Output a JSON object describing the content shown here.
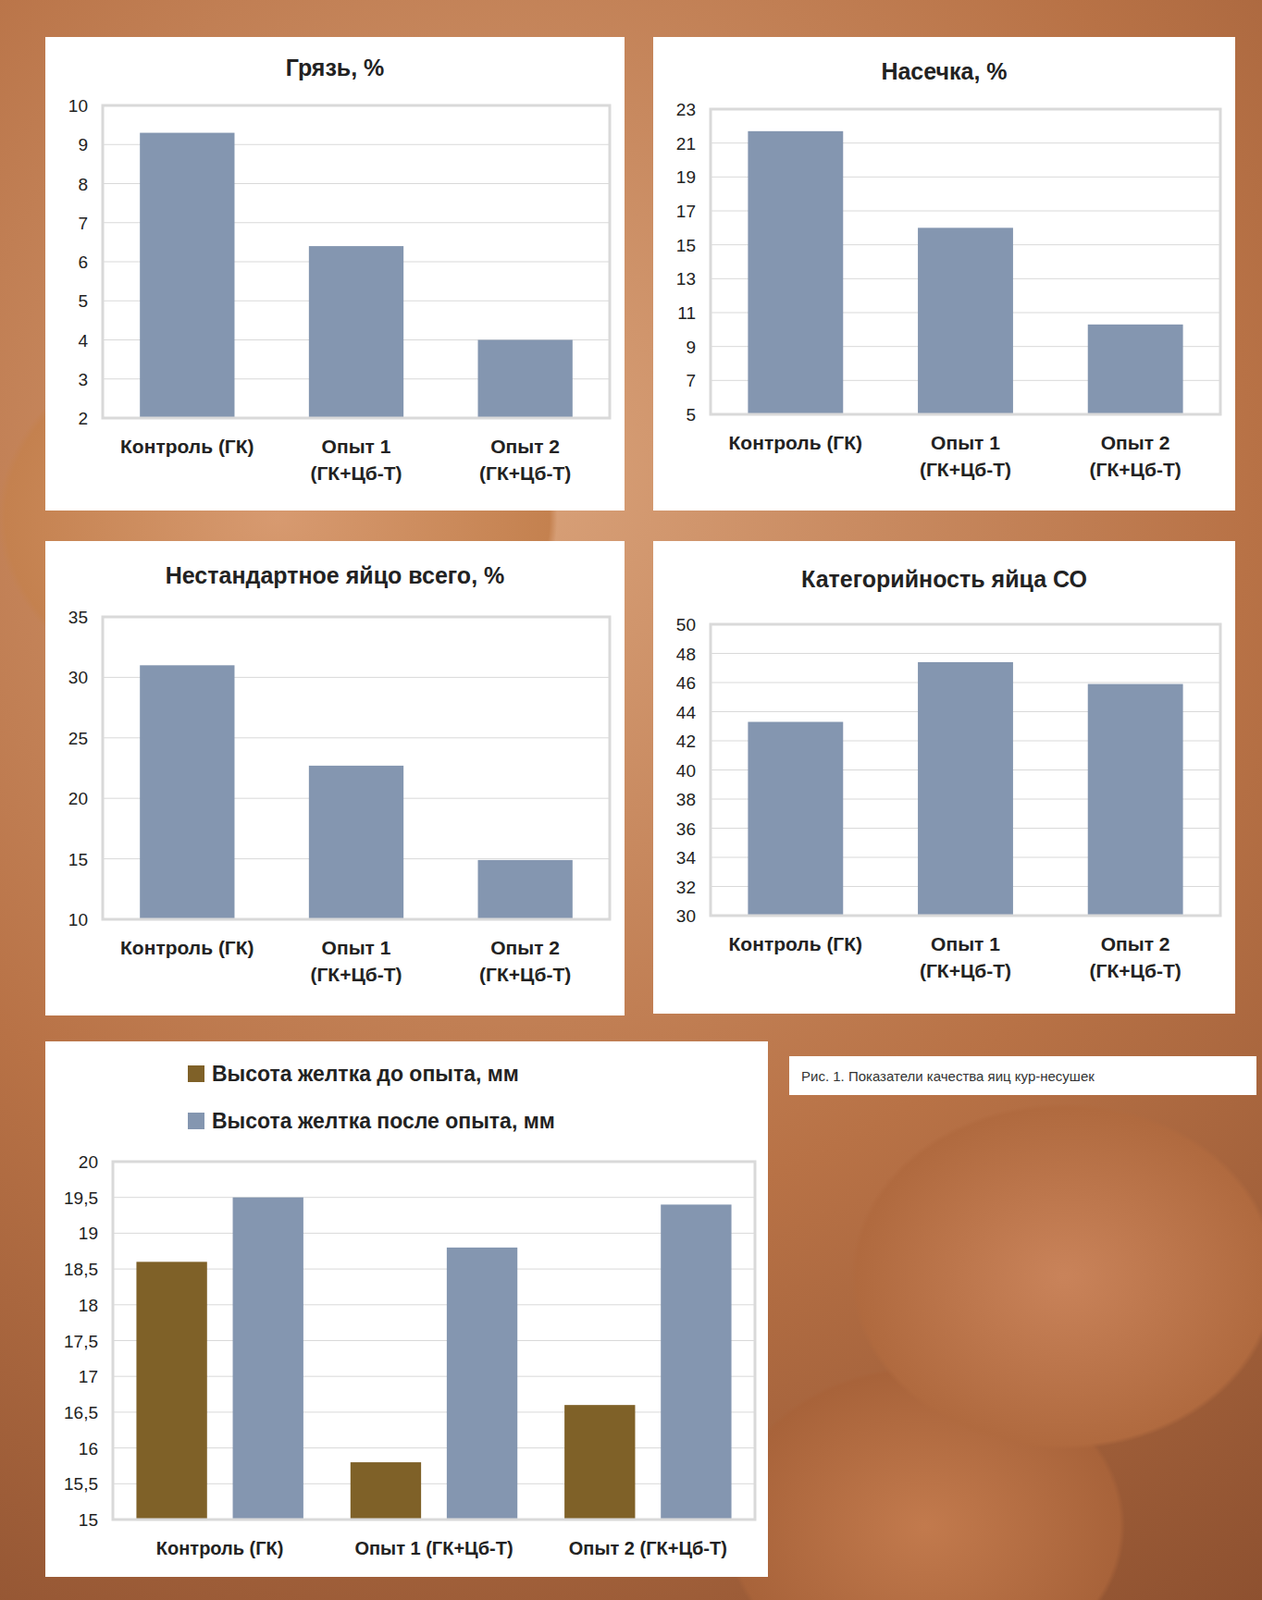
{
  "chart_data": [
    {
      "type": "bar",
      "title": "Грязь, %",
      "categories": [
        "Контроль (ГК)",
        "Опыт 1 (ГК+Цб-Т)",
        "Опыт 2 (ГК+Цб-Т)"
      ],
      "values": [
        9.3,
        6.4,
        4.0
      ],
      "color": "#8496b0",
      "ylim": [
        2,
        10
      ],
      "yticks": [
        2,
        3,
        4,
        5,
        6,
        7,
        8,
        9,
        10
      ],
      "grid": true
    },
    {
      "type": "bar",
      "title": "Насечка, %",
      "categories": [
        "Контроль (ГК)",
        "Опыт 1 (ГК+Цб-Т)",
        "Опыт 2 (ГК+Цб-Т)"
      ],
      "values": [
        21.7,
        16.0,
        10.3
      ],
      "color": "#8496b0",
      "ylim": [
        5,
        23
      ],
      "yticks": [
        5,
        7,
        9,
        11,
        13,
        15,
        17,
        19,
        21,
        23
      ],
      "grid": true
    },
    {
      "type": "bar",
      "title": "Нестандартное яйцо всего, %",
      "categories": [
        "Контроль (ГК)",
        "Опыт 1 (ГК+Цб-Т)",
        "Опыт 2 (ГК+Цб-Т)"
      ],
      "values": [
        31.0,
        22.7,
        14.9
      ],
      "color": "#8496b0",
      "ylim": [
        10,
        35
      ],
      "yticks": [
        10,
        15,
        20,
        25,
        30,
        35
      ],
      "grid": true
    },
    {
      "type": "bar",
      "title": "Категорийность яйца СО",
      "categories": [
        "Контроль (ГК)",
        "Опыт 1 (ГК+Цб-Т)",
        "Опыт 2 (ГК+Цб-Т)"
      ],
      "values": [
        43.3,
        47.4,
        45.9
      ],
      "color": "#8496b0",
      "ylim": [
        30,
        50
      ],
      "yticks": [
        30,
        32,
        34,
        36,
        38,
        40,
        42,
        44,
        46,
        48,
        50
      ],
      "grid": true
    },
    {
      "type": "bar",
      "categories": [
        "Контроль (ГК)",
        "Опыт 1 (ГК+Цб-Т)",
        "Опыт 2 (ГК+Цб-Т)"
      ],
      "series": [
        {
          "name": "Высота желтка до опыта, мм",
          "color": "#7f6128",
          "values": [
            18.6,
            15.8,
            16.6
          ]
        },
        {
          "name": "Высота желтка после опыта, мм",
          "color": "#8496b0",
          "values": [
            19.5,
            18.8,
            19.4
          ]
        }
      ],
      "ylim": [
        15,
        20
      ],
      "yticks": [
        15,
        {
          "value": 15.5,
          "label": "15,5"
        },
        16,
        {
          "value": 16.5,
          "label": "16,5"
        },
        17,
        {
          "value": 17.5,
          "label": "17,5"
        },
        18,
        {
          "value": 18.5,
          "label": "18,5"
        },
        19,
        {
          "value": 19.5,
          "label": "19,5"
        },
        20
      ],
      "grid": true,
      "legend": "top"
    }
  ],
  "caption": "Рис. 1. Показатели качества яиц кур-несушек"
}
